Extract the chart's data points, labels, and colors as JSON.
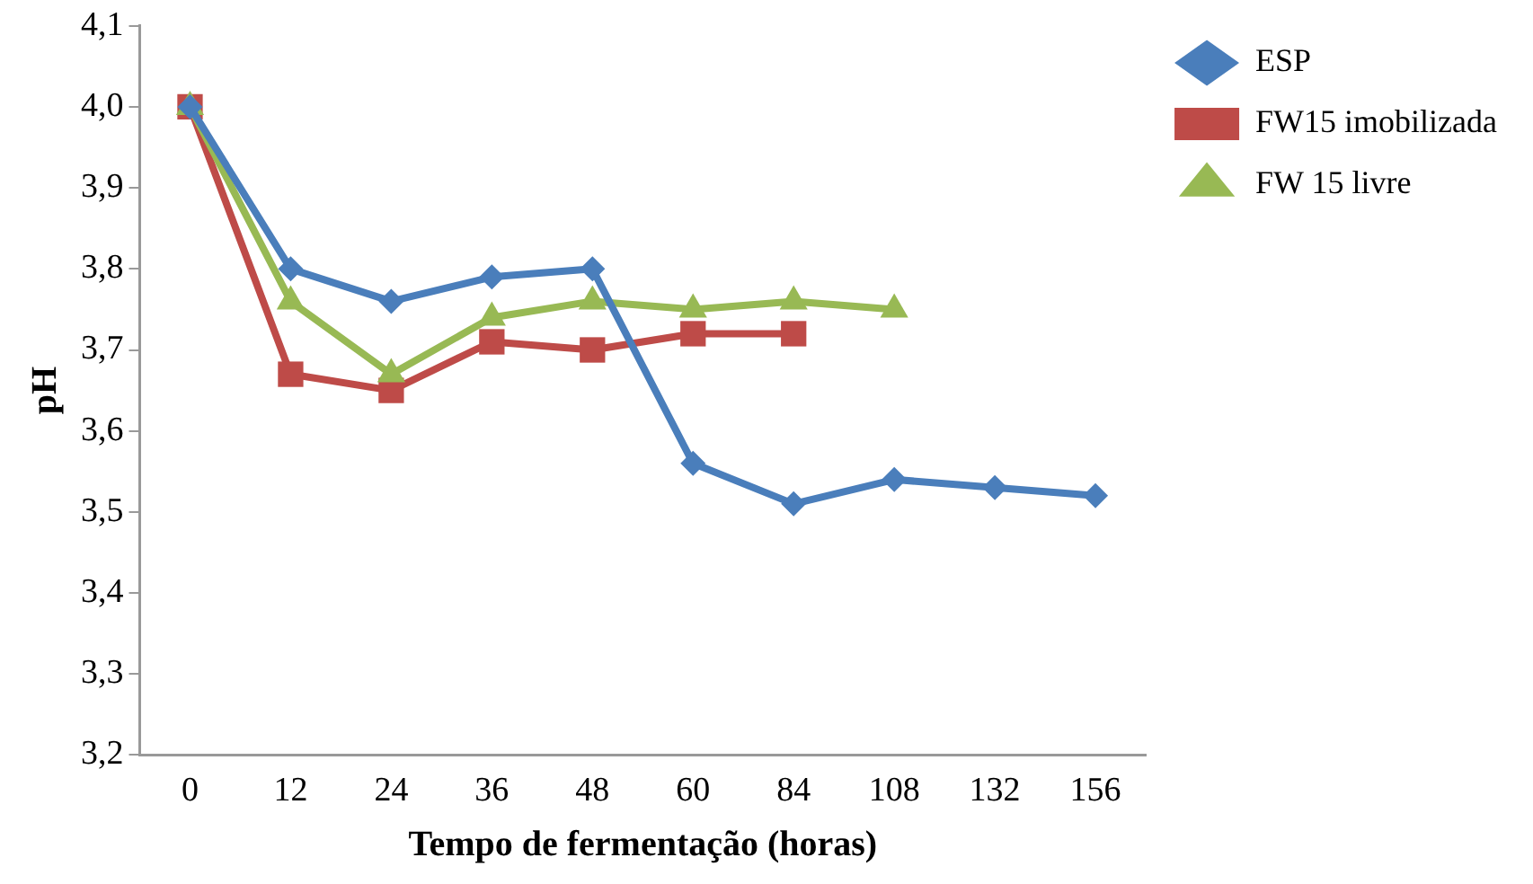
{
  "chart_data": {
    "type": "line",
    "xlabel": "Tempo de fermentação (horas)",
    "ylabel": "pH",
    "categories": [
      "0",
      "12",
      "24",
      "36",
      "48",
      "60",
      "84",
      "108",
      "132",
      "156"
    ],
    "series": [
      {
        "name": "ESP",
        "color": "#4a7ebb",
        "marker": "diamond",
        "values": [
          4.0,
          3.8,
          3.76,
          3.79,
          3.8,
          3.56,
          3.51,
          3.54,
          3.53,
          3.52
        ]
      },
      {
        "name": "FW15 imobilizada",
        "color": "#be4b48",
        "marker": "square",
        "values": [
          4.0,
          3.67,
          3.65,
          3.71,
          3.7,
          3.72,
          3.72,
          null,
          null,
          null
        ]
      },
      {
        "name": "FW 15 livre",
        "color": "#98b954",
        "marker": "triangle",
        "values": [
          4.0,
          3.76,
          3.67,
          3.74,
          3.76,
          3.75,
          3.76,
          3.75,
          null,
          null
        ]
      }
    ],
    "ylim": [
      3.2,
      4.1
    ],
    "yticks": [
      {
        "value": 3.2,
        "label": "3,2"
      },
      {
        "value": 3.3,
        "label": "3,3"
      },
      {
        "value": 3.4,
        "label": "3,4"
      },
      {
        "value": 3.5,
        "label": "3,5"
      },
      {
        "value": 3.6,
        "label": "3,6"
      },
      {
        "value": 3.7,
        "label": "3,7"
      },
      {
        "value": 3.8,
        "label": "3,8"
      },
      {
        "value": 3.9,
        "label": "3,9"
      },
      {
        "value": 4.0,
        "label": "4,0"
      },
      {
        "value": 4.1,
        "label": "4,1"
      }
    ],
    "grid": false,
    "legend": "right",
    "line_style": "solid"
  }
}
